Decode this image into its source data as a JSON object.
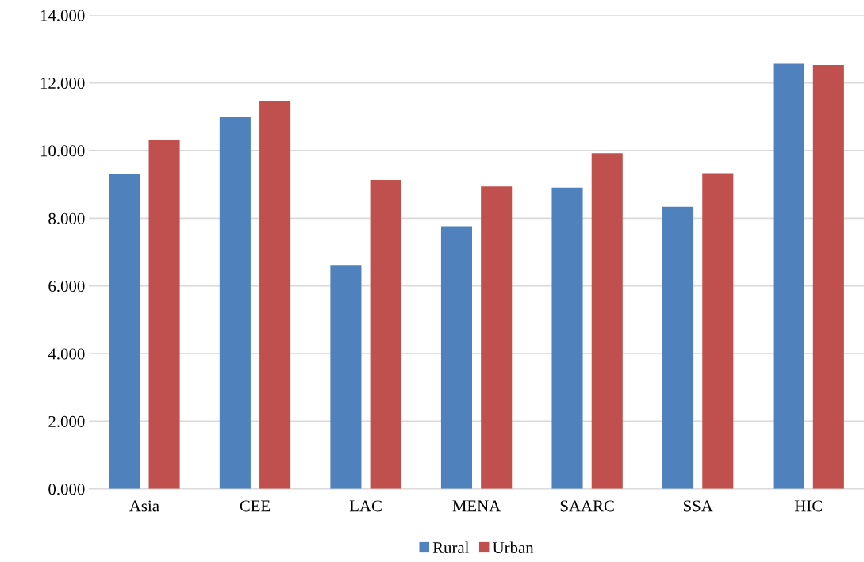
{
  "chart_data": {
    "type": "bar",
    "categories": [
      "Asia",
      "CEE",
      "LAC",
      "MENA",
      "SAARC",
      "SSA",
      "HIC"
    ],
    "series": [
      {
        "name": "Rural",
        "color": "#4f81bd",
        "values": [
          9.3,
          10.98,
          6.62,
          7.76,
          8.9,
          8.34,
          12.56
        ]
      },
      {
        "name": "Urban",
        "color": "#c0504d",
        "values": [
          10.3,
          11.46,
          9.13,
          8.94,
          9.92,
          9.33,
          12.53
        ]
      }
    ],
    "ylim": [
      0,
      14
    ],
    "yticks": [
      {
        "value": 0,
        "label": "0.000"
      },
      {
        "value": 2,
        "label": "2.000"
      },
      {
        "value": 4,
        "label": "4.000"
      },
      {
        "value": 6,
        "label": "6.000"
      },
      {
        "value": 8,
        "label": "8.000"
      },
      {
        "value": 10,
        "label": "10.000"
      },
      {
        "value": 12,
        "label": "12.000"
      },
      {
        "value": 14,
        "label": "14.000"
      }
    ],
    "grid": "y",
    "legend": "bottom"
  }
}
